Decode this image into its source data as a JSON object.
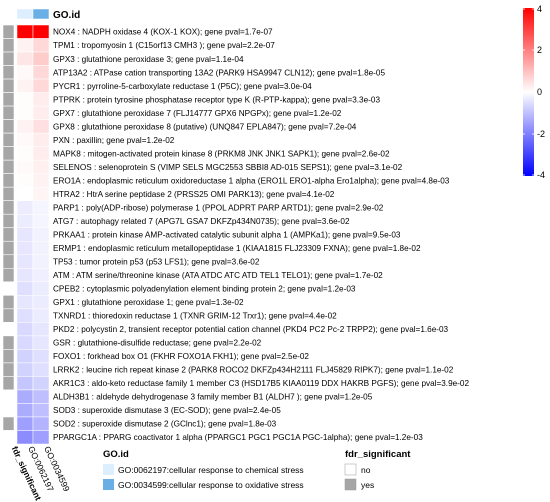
{
  "chart_data": {
    "type": "heatmap",
    "columns": [
      "fdr_significant",
      "GO:0062197",
      "GO:0034599"
    ],
    "column_labels": [
      "fdr_significant",
      "GO:0062197",
      "GO:0034599"
    ],
    "rows": [
      {
        "label": "NOX4 : NADPH oxidase 4 (KOX-1 KOX); gene pval=1.7e-07",
        "fdr": "yes",
        "values": [
          4.0,
          4.0
        ]
      },
      {
        "label": "TPM1 : tropomyosin 1 (C15orf13 CMH3 ); gene pval=2.2e-07",
        "fdr": "yes",
        "values": [
          0.2,
          0.6
        ]
      },
      {
        "label": "GPX3 : glutathione peroxidase 3; gene pval=1.1e-04",
        "fdr": "yes",
        "values": [
          0.4,
          0.8
        ]
      },
      {
        "label": "ATP13A2 : ATPase cation transporting 13A2 (PARK9 HSA9947 CLN12); gene pval=1.8e-05",
        "fdr": "yes",
        "values": [
          0.1,
          0.6
        ]
      },
      {
        "label": "PYCR1 : pyrroline-5-carboxylate reductase 1 (P5C); gene pval=3.0e-04",
        "fdr": "yes",
        "values": [
          0.2,
          0.6
        ]
      },
      {
        "label": "PTPRK : protein tyrosine phosphatase receptor type K (R-PTP-kappa); gene pval=3.3e-03",
        "fdr": "yes",
        "values": [
          0.05,
          0.3
        ]
      },
      {
        "label": "GPX7 : glutathione peroxidase 7 (FLJ14777 GPX6 NPGPx); gene pval=1.2e-02",
        "fdr": "yes",
        "values": [
          0.05,
          0.3
        ]
      },
      {
        "label": "GPX8 : glutathione peroxidase 8 (putative) (UNQ847 EPLA847); gene pval=7.2e-04",
        "fdr": "yes",
        "values": [
          0.2,
          0.5
        ]
      },
      {
        "label": "PXN : paxillin; gene pval=1.2e-02",
        "fdr": "yes",
        "values": [
          0.1,
          0.3
        ]
      },
      {
        "label": "MAPK8 : mitogen-activated protein kinase 8 (PRKM8 JNK JNK1 SAPK1); gene pval=2.6e-02",
        "fdr": "yes",
        "values": [
          0.05,
          0.3
        ]
      },
      {
        "label": "SELENOS : selenoprotein S (VIMP SELS MGC2553 SBBI8 AD-015 SEPS1); gene pval=3.1e-02",
        "fdr": "yes",
        "values": [
          0.1,
          0.25
        ]
      },
      {
        "label": "ERO1A : endoplasmic reticulum oxidoreductase 1 alpha (ERO1L ERO1-alpha Ero1alpha); gene pval=4.8e-03",
        "fdr": "yes",
        "values": [
          0.05,
          0.2
        ]
      },
      {
        "label": "HTRA2 : HtrA serine peptidase 2 (PRSS25 OMI PARK13); gene pval=4.1e-02",
        "fdr": "yes",
        "values": [
          0.0,
          0.15
        ]
      },
      {
        "label": "PARP1 : poly(ADP-ribose) polymerase 1 (PPOL ADPRT PARP ARTD1); gene pval=2.9e-02",
        "fdr": "yes",
        "values": [
          -0.3,
          -0.15
        ]
      },
      {
        "label": "ATG7 : autophagy related 7 (APG7L GSA7 DKFZp434N0735); gene pval=3.6e-02",
        "fdr": "yes",
        "values": [
          -0.3,
          -0.15
        ]
      },
      {
        "label": "PRKAA1 : protein kinase AMP-activated catalytic subunit alpha 1 (AMPKa1); gene pval=9.5e-03",
        "fdr": "yes",
        "values": [
          -0.4,
          -0.2
        ]
      },
      {
        "label": "ERMP1 : endoplasmic reticulum metallopeptidase 1 (KIAA1815 FLJ23309 FXNA); gene pval=1.8e-02",
        "fdr": "yes",
        "values": [
          -0.4,
          -0.2
        ]
      },
      {
        "label": "TP53 : tumor protein p53 (p53 LFS1); gene pval=3.6e-02",
        "fdr": "yes",
        "values": [
          -0.4,
          -0.2
        ]
      },
      {
        "label": "ATM : ATM serine/threonine kinase (ATA ATDC ATC ATD TEL1 TELO1); gene pval=1.7e-02",
        "fdr": "yes",
        "values": [
          -0.4,
          -0.25
        ]
      },
      {
        "label": "CPEB2 : cytoplasmic polyadenylation element binding protein 2; gene pval=1.2e-03",
        "fdr": "no",
        "values": [
          -0.5,
          -0.3
        ]
      },
      {
        "label": "GPX1 : glutathione peroxidase 1; gene pval=1.3e-02",
        "fdr": "yes",
        "values": [
          -0.4,
          -0.3
        ]
      },
      {
        "label": "TXNRD1 : thioredoxin reductase 1 (TXNR GRIM-12 Trxr1); gene pval=4.4e-02",
        "fdr": "yes",
        "values": [
          -0.5,
          -0.3
        ]
      },
      {
        "label": "PKD2 : polycystin 2, transient receptor potential cation channel (PKD4 PC2 Pc-2 TRPP2); gene pval=1.6e-03",
        "fdr": "no",
        "values": [
          -0.6,
          -0.4
        ]
      },
      {
        "label": "GSR : glutathione-disulfide reductase; gene pval=2.2e-02",
        "fdr": "yes",
        "values": [
          -0.6,
          -0.4
        ]
      },
      {
        "label": "FOXO1 : forkhead box O1 (FKHR FOXO1A FKH1); gene pval=2.5e-02",
        "fdr": "yes",
        "values": [
          -0.7,
          -0.5
        ]
      },
      {
        "label": "LRRK2 : leucine rich repeat kinase 2 (PARK8 ROCO2 DKFZp434H2111 FLJ45829 RIPK7); gene pval=1.1e-02",
        "fdr": "yes",
        "values": [
          -0.7,
          -0.5
        ]
      },
      {
        "label": "AKR1C3 : aldo-keto reductase family 1 member C3 (HSD17B5 KIAA0119 DDX HAKRB PGFS); gene pval=3.9e-02",
        "fdr": "yes",
        "values": [
          -0.9,
          -0.7
        ]
      },
      {
        "label": "ALDH3B1 : aldehyde dehydrogenase 3 family member B1 (ALDH7 ); gene pval=1.2e-05",
        "fdr": "no",
        "values": [
          -1.3,
          -1.0
        ]
      },
      {
        "label": "SOD3 : superoxide dismutase 3 (EC-SOD); gene pval=2.4e-05",
        "fdr": "no",
        "values": [
          -1.3,
          -1.0
        ]
      },
      {
        "label": "SOD2 : superoxide dismutase 2 (GClnc1); gene pval=1.8e-03",
        "fdr": "yes",
        "values": [
          -1.5,
          -1.2
        ]
      },
      {
        "label": "PPARGC1A : PPARG coactivator 1 alpha (PPARGC1 PGC1 PGC1A PGC-1alpha); gene pval=1.2e-03",
        "fdr": "no",
        "values": [
          -1.8,
          -1.5
        ]
      }
    ],
    "column_header": {
      "label": "GO.id",
      "colors": [
        "#ddeeff",
        "#6aaee6"
      ]
    },
    "colorbar": {
      "min": -4,
      "max": 4,
      "ticks": [
        4,
        2,
        0,
        -2,
        -4
      ],
      "low_color": "#0000ff",
      "mid_color": "#ffffff",
      "high_color": "#ff0000"
    },
    "legend_go": {
      "title": "GO.id",
      "entries": [
        {
          "label": "GO:0062197:cellular response to chemical stress",
          "color": "#ddeeff"
        },
        {
          "label": "GO:0034599:cellular response to oxidative stress",
          "color": "#6aaee6"
        }
      ]
    },
    "legend_fdr": {
      "title": "fdr_significant",
      "entries": [
        {
          "label": "no",
          "color": "#ffffff"
        },
        {
          "label": "yes",
          "color": "#a6a6a6"
        }
      ]
    },
    "fdr_colors": {
      "yes": "#a6a6a6",
      "no": "#ffffff"
    }
  }
}
